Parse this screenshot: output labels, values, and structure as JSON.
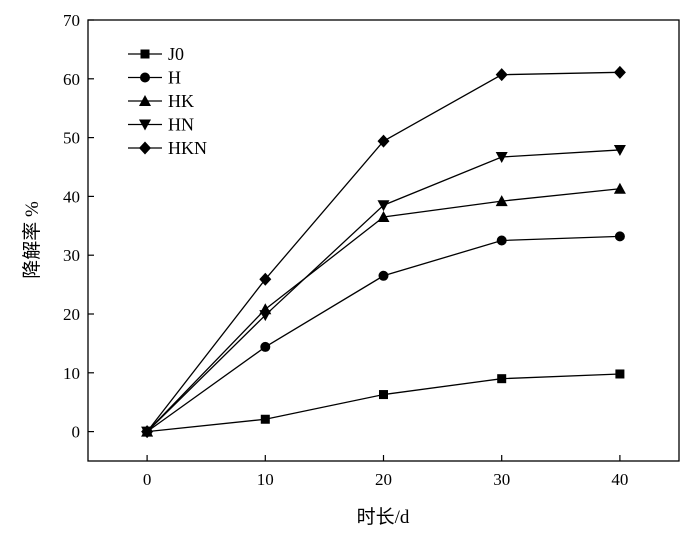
{
  "chart_data": {
    "type": "line",
    "title": "",
    "xlabel": "时长/d",
    "ylabel": "降解率 %",
    "x": [
      0,
      10,
      20,
      30,
      40
    ],
    "xlim": [
      -5,
      45
    ],
    "ylim": [
      -5,
      70
    ],
    "xticks": [
      0,
      10,
      20,
      30,
      40
    ],
    "yticks": [
      0,
      10,
      20,
      30,
      40,
      50,
      60,
      70
    ],
    "grid": false,
    "legend_position": "top-left",
    "series": [
      {
        "name": "J0",
        "marker": "square",
        "values": [
          0,
          2.1,
          6.3,
          9.0,
          9.8
        ]
      },
      {
        "name": "H",
        "marker": "circle",
        "values": [
          0,
          14.4,
          26.5,
          32.5,
          33.2
        ]
      },
      {
        "name": "HK",
        "marker": "triangle-up",
        "values": [
          0,
          20.8,
          36.5,
          39.2,
          41.3
        ]
      },
      {
        "name": "HN",
        "marker": "triangle-down",
        "values": [
          0,
          19.8,
          38.5,
          46.7,
          47.9
        ]
      },
      {
        "name": "HKN",
        "marker": "diamond",
        "values": [
          0,
          25.9,
          49.4,
          60.7,
          61.1
        ]
      }
    ]
  }
}
